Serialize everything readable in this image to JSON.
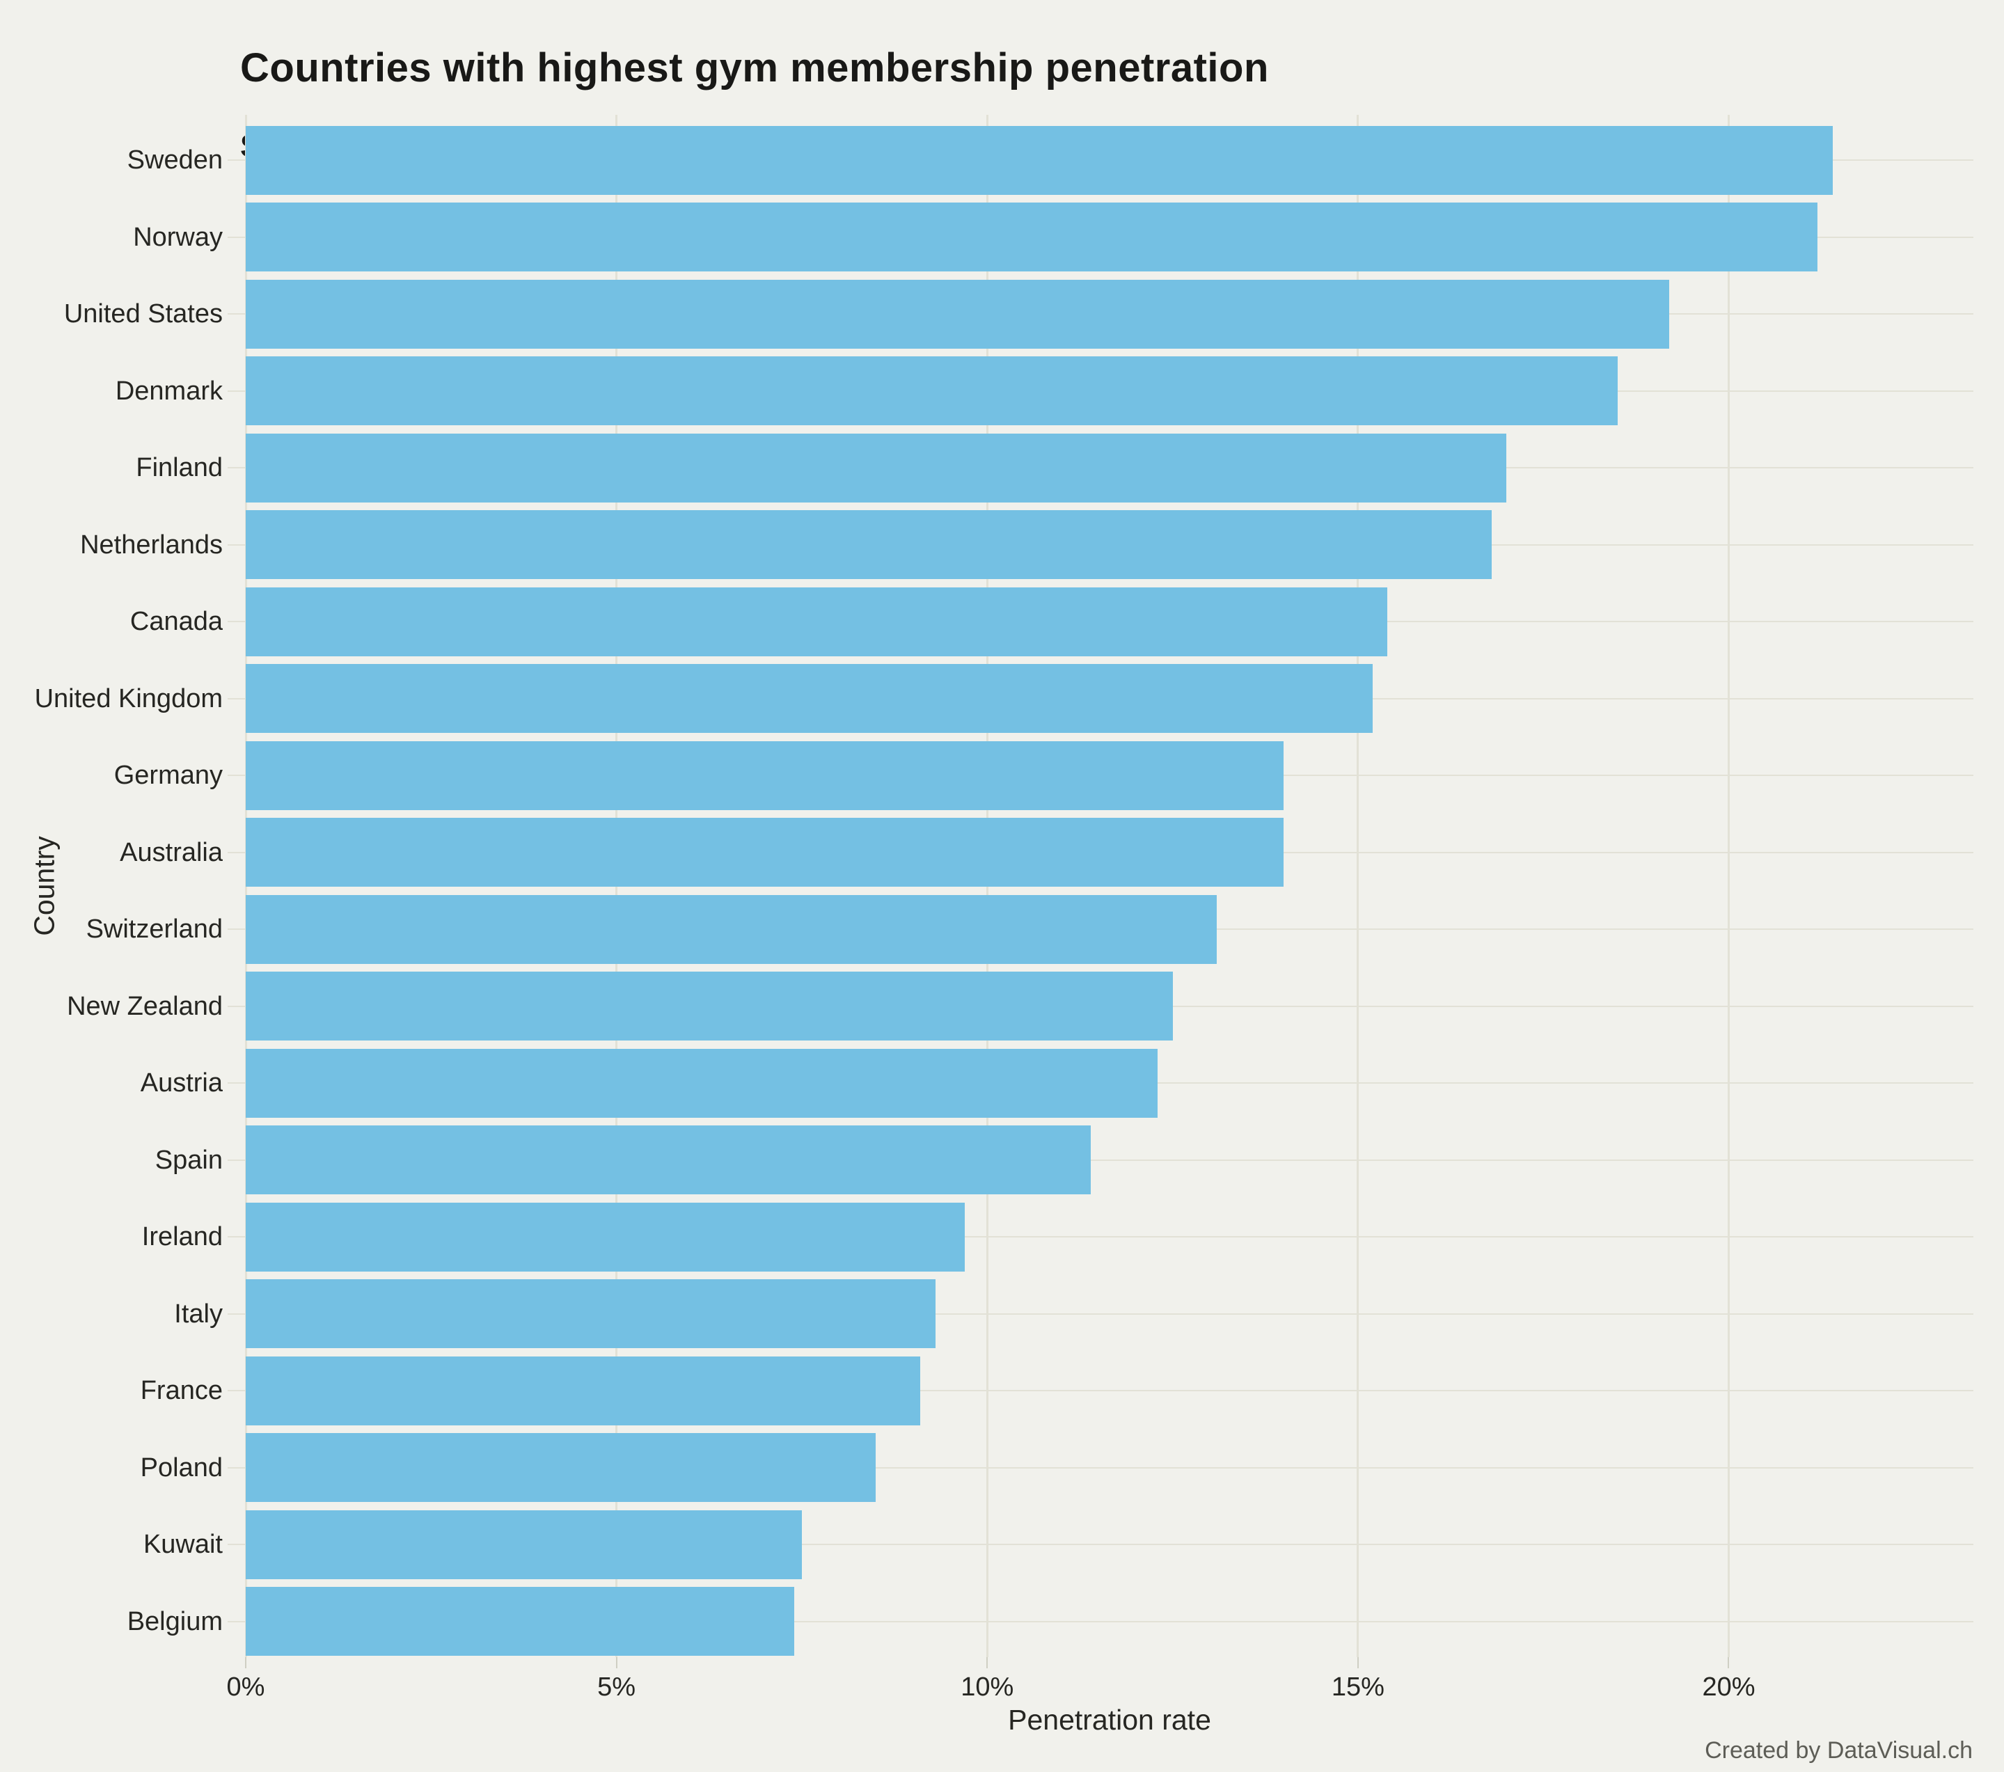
{
  "page": {
    "credit": "Created by DataVisual.ch"
  },
  "colors": {
    "background": "#f1f1ec",
    "bar": "#74c0e3",
    "gridline": "#e2e1d6",
    "tick_mark": "#cfcfc3",
    "text": "#262622",
    "title_text": "#191917",
    "credit_text": "#5d5d56"
  },
  "chart_data": {
    "type": "bar",
    "orientation": "horizontal",
    "title": "Countries with highest gym membership penetration",
    "subtitle": "Statistical data for the year 2021",
    "xlabel": "Penetration rate",
    "ylabel": "Country",
    "unit": "%",
    "xlim": [
      0,
      23.3
    ],
    "grid": true,
    "legend": false,
    "x_ticks": [
      {
        "value": 0,
        "label": "0%"
      },
      {
        "value": 5,
        "label": "5%"
      },
      {
        "value": 10,
        "label": "10%"
      },
      {
        "value": 15,
        "label": "15%"
      },
      {
        "value": 20,
        "label": "20%"
      }
    ],
    "categories": [
      "Sweden",
      "Norway",
      "United States",
      "Denmark",
      "Finland",
      "Netherlands",
      "Canada",
      "United Kingdom",
      "Germany",
      "Australia",
      "Switzerland",
      "New Zealand",
      "Austria",
      "Spain",
      "Ireland",
      "Italy",
      "France",
      "Poland",
      "Kuwait",
      "Belgium"
    ],
    "values": [
      21.4,
      21.2,
      19.2,
      18.5,
      17.0,
      16.8,
      15.4,
      15.2,
      14.0,
      14.0,
      13.1,
      12.5,
      12.3,
      11.4,
      9.7,
      9.3,
      9.1,
      8.5,
      7.5,
      7.4
    ]
  }
}
